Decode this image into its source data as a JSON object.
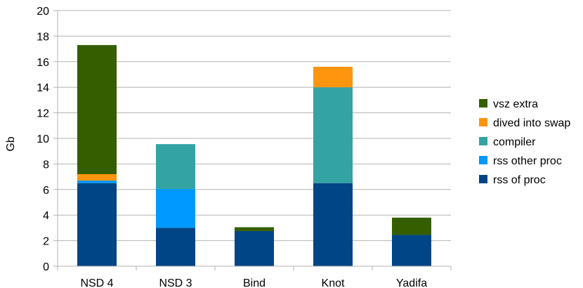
{
  "chart_data": {
    "type": "bar",
    "stacked": true,
    "categories": [
      "NSD 4",
      "NSD 3",
      "Bind",
      "Knot",
      "Yadifa"
    ],
    "series": [
      {
        "name": "rss of proc",
        "color": "#004586",
        "values": [
          6.5,
          3.0,
          2.75,
          6.5,
          2.45
        ]
      },
      {
        "name": "rss other proc",
        "color": "#0099ff",
        "values": [
          0.2,
          3.05,
          0.0,
          0.0,
          0.0
        ]
      },
      {
        "name": "compiler",
        "color": "#33a3a3",
        "values": [
          0.0,
          3.5,
          0.0,
          7.5,
          0.0
        ]
      },
      {
        "name": "dived into swap",
        "color": "#ff950e",
        "values": [
          0.5,
          0.0,
          0.0,
          1.6,
          0.0
        ]
      },
      {
        "name": "vsz extra",
        "color": "#355e00",
        "values": [
          10.1,
          0.0,
          0.3,
          0.0,
          1.35
        ]
      }
    ],
    "ylabel": "Gb",
    "ylim": [
      0,
      20
    ],
    "yticks": [
      "0",
      "2",
      "4",
      "6",
      "8",
      "10",
      "12",
      "14",
      "16",
      "18",
      "20"
    ],
    "grid": true,
    "legend_position": "right"
  }
}
